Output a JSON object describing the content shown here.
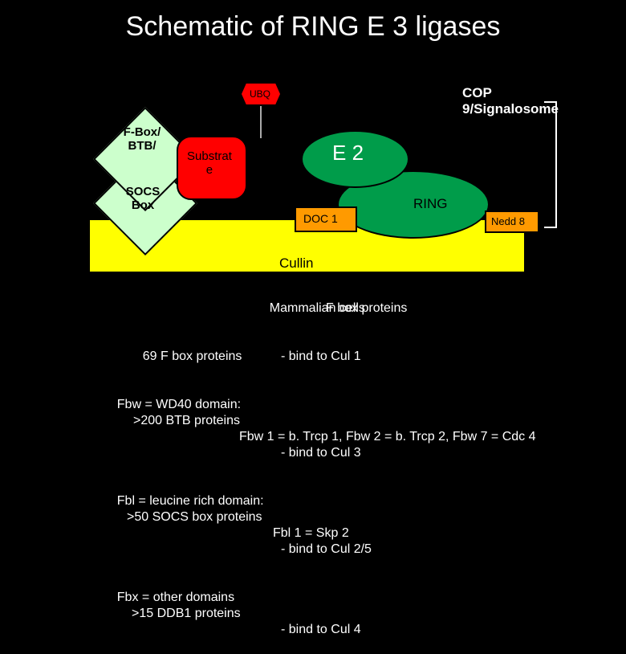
{
  "title": "Schematic of RING E 3 ligases",
  "labels": {
    "ubq": "UBQ",
    "cop9": "COP 9/Signalosome",
    "fbox_btb": "F-Box/\nBTB/",
    "socs": "SOCS\nBox",
    "substrate": "Substrat\ne",
    "e2": "E 2",
    "ring": "RING",
    "doc1": "DOC 1",
    "nedd8": "Nedd 8",
    "cullin": "Cullin"
  },
  "colors": {
    "background": "#000000",
    "cullin_fill": "#ffff00",
    "ring_fill": "#009c4a",
    "e2_fill": "#009c4a",
    "doc1_fill": "#ff9a00",
    "nedd8_fill": "#ff9a00",
    "substrate_fill": "#ff0000",
    "ubq_fill": "#ff0000",
    "diamond_fill": "#ccffcc",
    "stroke": "#000000",
    "text_light": "#ffffff",
    "text_dark": "#000000"
  },
  "text": {
    "line1a": "Mammalian cells",
    "line1b": "F box proteins",
    "line2a": "69 F box proteins",
    "line2b": "- bind to Cul 1",
    "line3a": "Fbw = WD40 domain:",
    "line3a_over": ">200 BTB proteins",
    "line3b": "Fbw 1 = b. Trcp 1, Fbw 2 = b. Trcp 2, Fbw 7 = Cdc 4",
    "line3b_over": "- bind to Cul 3",
    "line4a": "Fbl = leucine rich domain:",
    "line4a_over": ">50 SOCS box proteins",
    "line4b": "Fbl 1 = Skp 2",
    "line4b_over": "- bind to Cul 2/5",
    "line5a": "Fbx = other domains",
    "line5a_over": ">15 DDB1 proteins",
    "line5b": "- bind to Cul 4"
  }
}
